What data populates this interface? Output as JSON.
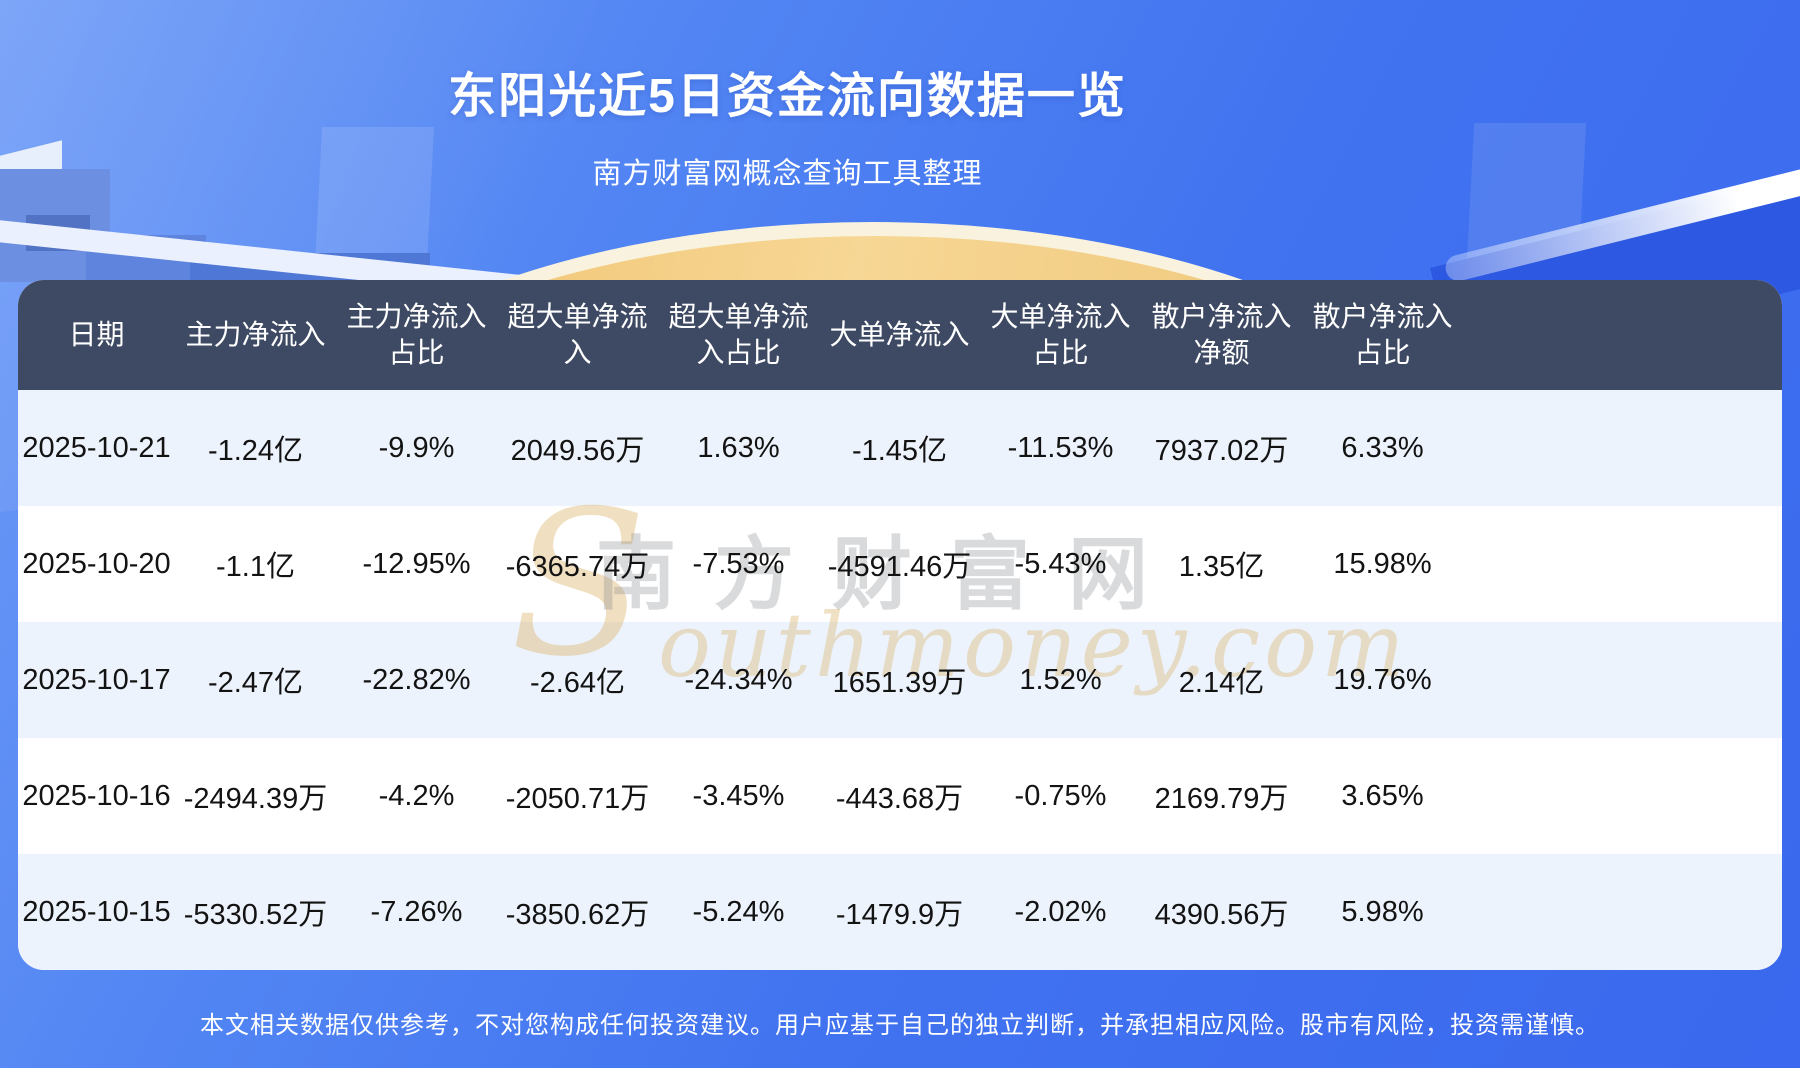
{
  "page": {
    "title": "东阳光近5日资金流向数据一览",
    "subtitle": "南方财富网概念查询工具整理",
    "disclaimer": "本文相关数据仅供参考，不对您构成任何投资建议。用户应基于自己的独立判断，并承担相应风险。股市有风险，投资需谨慎。"
  },
  "watermark": {
    "cn": "南方财富网",
    "en_initial": "S",
    "en_rest": "outhmoney.com"
  },
  "colors": {
    "background_top": "#6f9cf7",
    "background_bottom": "#3a68ee",
    "table_header_bg": "#3e4a63",
    "row_light": "#edf3fc",
    "row_white": "#ffffff",
    "accent_gold": "#f0c36d",
    "title_text": "#ffffff",
    "body_text": "#131313"
  },
  "chart_data": {
    "type": "table",
    "title": "东阳光近5日资金流向数据一览",
    "subtitle": "南方财富网概念查询工具整理",
    "columns": [
      "日期",
      "主力净流入",
      "主力净流入占比",
      "超大单净流入",
      "超大单净流入占比",
      "大单净流入",
      "大单净流入占比",
      "散户净流入净额",
      "散户净流入占比"
    ],
    "rows": [
      [
        "2025-10-21",
        "-1.24亿",
        "-9.9%",
        "2049.56万",
        "1.63%",
        "-1.45亿",
        "-11.53%",
        "7937.02万",
        "6.33%"
      ],
      [
        "2025-10-20",
        "-1.1亿",
        "-12.95%",
        "-6365.74万",
        "-7.53%",
        "-4591.46万",
        "-5.43%",
        "1.35亿",
        "15.98%"
      ],
      [
        "2025-10-17",
        "-2.47亿",
        "-22.82%",
        "-2.64亿",
        "-24.34%",
        "1651.39万",
        "1.52%",
        "2.14亿",
        "19.76%"
      ],
      [
        "2025-10-16",
        "-2494.39万",
        "-4.2%",
        "-2050.71万",
        "-3.45%",
        "-443.68万",
        "-0.75%",
        "2169.79万",
        "3.65%"
      ],
      [
        "2025-10-15",
        "-5330.52万",
        "-7.26%",
        "-3850.62万",
        "-5.24%",
        "-1479.9万",
        "-2.02%",
        "4390.56万",
        "5.98%"
      ]
    ]
  }
}
